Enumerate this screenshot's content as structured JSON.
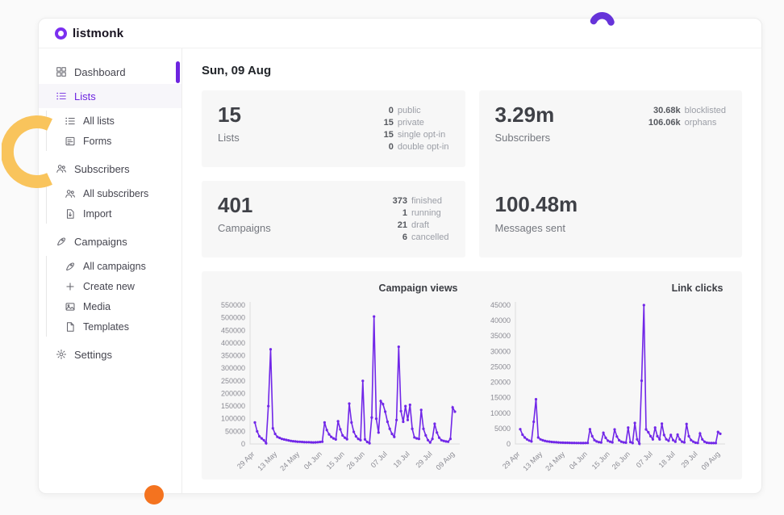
{
  "brand": {
    "name": "listmonk"
  },
  "page": {
    "title": "Sun, 09 Aug"
  },
  "colors": {
    "accent": "#6d24e0",
    "chart_line": "#7127e8",
    "arc_yellow": "#f9c45c",
    "arc_purple": "#6633d9",
    "dot_orange": "#f4731f"
  },
  "sidebar": {
    "dashboard": "Dashboard",
    "lists": "Lists",
    "all_lists": "All lists",
    "forms": "Forms",
    "subscribers": "Subscribers",
    "all_subscribers": "All subscribers",
    "import": "Import",
    "campaigns": "Campaigns",
    "all_campaigns": "All campaigns",
    "create_new": "Create new",
    "media": "Media",
    "templates": "Templates",
    "settings": "Settings"
  },
  "stats": {
    "lists": {
      "value": "15",
      "label": "Lists",
      "breakdown": [
        {
          "num": "0",
          "label": "public"
        },
        {
          "num": "15",
          "label": "private"
        },
        {
          "num": "15",
          "label": "single opt-in"
        },
        {
          "num": "0",
          "label": "double opt-in"
        }
      ]
    },
    "subscribers": {
      "value": "3.29m",
      "label": "Subscribers",
      "breakdown": [
        {
          "num": "30.68k",
          "label": "blocklisted"
        },
        {
          "num": "106.06k",
          "label": "orphans"
        }
      ]
    },
    "campaigns": {
      "value": "401",
      "label": "Campaigns",
      "breakdown": [
        {
          "num": "373",
          "label": "finished"
        },
        {
          "num": "1",
          "label": "running"
        },
        {
          "num": "21",
          "label": "draft"
        },
        {
          "num": "6",
          "label": "cancelled"
        }
      ]
    },
    "messages": {
      "value": "100.48m",
      "label": "Messages sent"
    }
  },
  "chart_data": [
    {
      "type": "line",
      "title": "Campaign views",
      "x_ticks": [
        "29 Apr",
        "13 May",
        "24 May",
        "04 Jun",
        "15 Jun",
        "26 Jun",
        "07 Jul",
        "18 Jul",
        "29 Jul",
        "09 Aug"
      ],
      "values": [
        85000,
        50000,
        30000,
        22000,
        15000,
        3000,
        150000,
        375000,
        62000,
        40000,
        28000,
        24000,
        20000,
        18000,
        16000,
        14000,
        12000,
        11000,
        10000,
        9000,
        8500,
        8000,
        7500,
        7000,
        7000,
        6500,
        6000,
        6500,
        7000,
        8000,
        9000,
        85000,
        55000,
        38000,
        28000,
        22000,
        18000,
        90000,
        58000,
        34000,
        25000,
        19000,
        160000,
        85000,
        48000,
        30000,
        20000,
        15000,
        250000,
        18000,
        8000,
        3000,
        105000,
        505000,
        100000,
        45000,
        170000,
        158000,
        128000,
        88000,
        60000,
        40000,
        28000,
        95000,
        385000,
        130000,
        88000,
        150000,
        95000,
        155000,
        60000,
        26000,
        22000,
        20000,
        135000,
        60000,
        34000,
        15000,
        6000,
        20000,
        80000,
        45000,
        25000,
        15000,
        12000,
        10000,
        9000,
        20000,
        145000,
        128000
      ],
      "ylim": [
        0,
        550000
      ],
      "y_step": 50000,
      "line_color": "#7127e8",
      "grid": false,
      "legend": false
    },
    {
      "type": "line",
      "title": "Link clicks",
      "x_ticks": [
        "29 Apr",
        "13 May",
        "24 May",
        "04 Jun",
        "15 Jun",
        "26 Jun",
        "07 Jul",
        "18 Jul",
        "29 Jul",
        "09 Aug"
      ],
      "values": [
        4800,
        3000,
        2100,
        1500,
        1100,
        800,
        7200,
        14500,
        2100,
        1500,
        1200,
        1000,
        850,
        750,
        650,
        600,
        550,
        500,
        450,
        420,
        400,
        380,
        360,
        340,
        330,
        320,
        310,
        300,
        300,
        320,
        350,
        4800,
        2500,
        1250,
        800,
        600,
        500,
        3600,
        2000,
        1050,
        720,
        520,
        4700,
        2400,
        1200,
        720,
        520,
        420,
        5300,
        620,
        300,
        6800,
        1500,
        100,
        20500,
        45000,
        4700,
        3800,
        2500,
        1500,
        5300,
        2500,
        1500,
        6600,
        2900,
        1500,
        1050,
        2900,
        1250,
        720,
        3000,
        1500,
        720,
        520,
        6500,
        2500,
        1250,
        720,
        420,
        320,
        3400,
        1500,
        720,
        420,
        320,
        300,
        280,
        300,
        3900,
        3300
      ],
      "ylim": [
        0,
        45000
      ],
      "y_step": 5000,
      "line_color": "#7127e8",
      "grid": false,
      "legend": false
    }
  ]
}
